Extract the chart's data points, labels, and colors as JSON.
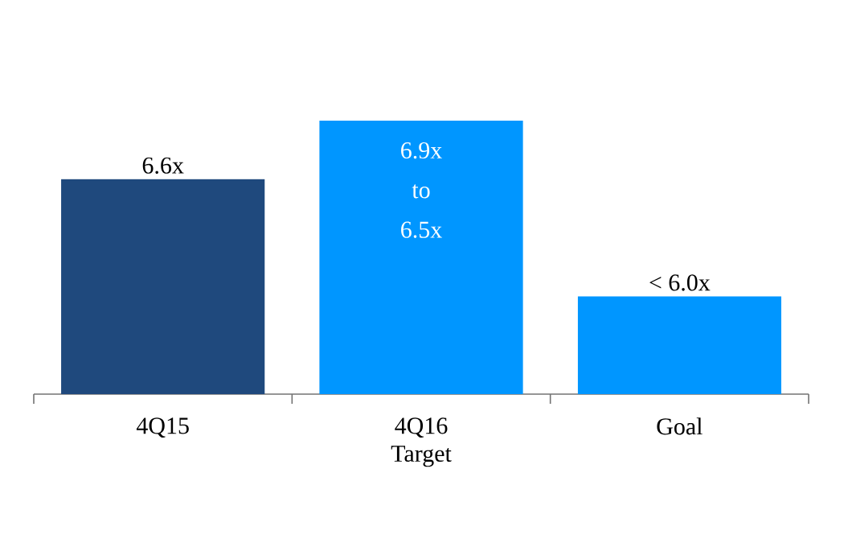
{
  "chart_data": {
    "type": "bar",
    "ylim": [
      5.5,
      6.9
    ],
    "tick_labels": "x",
    "categories": [
      "4Q15",
      "4Q16 Target",
      "Goal"
    ],
    "values": [
      6.6,
      6.9,
      6.0
    ],
    "colors": [
      "#1f497d",
      "#0096ff",
      "#0096ff"
    ],
    "value_labels": [
      "6.6x",
      "6.9x to 6.5x",
      "< 6.0x"
    ]
  }
}
